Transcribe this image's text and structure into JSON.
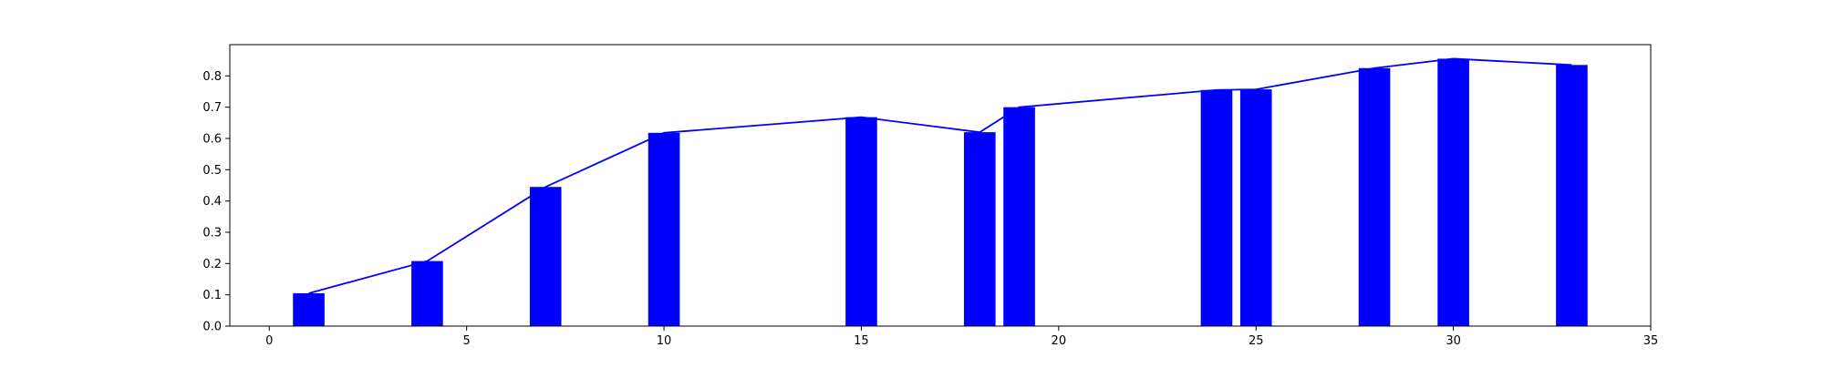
{
  "chart_data": {
    "type": "bar",
    "title": "",
    "xlabel": "",
    "ylabel": "",
    "xlim": [
      -1,
      35
    ],
    "ylim": [
      0,
      0.9
    ],
    "x_ticks": [
      0,
      5,
      10,
      15,
      20,
      25,
      30,
      35
    ],
    "y_ticks": [
      0.0,
      0.1,
      0.2,
      0.3,
      0.4,
      0.5,
      0.6,
      0.7,
      0.8
    ],
    "grid": false,
    "legend": "none",
    "bar_width": 0.8,
    "x": [
      1,
      4,
      7,
      10,
      15,
      18,
      19,
      24,
      25,
      28,
      30,
      33
    ],
    "values": [
      0.105,
      0.208,
      0.445,
      0.618,
      0.668,
      0.62,
      0.7,
      0.755,
      0.757,
      0.825,
      0.855,
      0.835
    ],
    "series": [
      {
        "type": "bar",
        "color": "#0000ff"
      },
      {
        "type": "line",
        "color": "#0000ff"
      }
    ]
  }
}
